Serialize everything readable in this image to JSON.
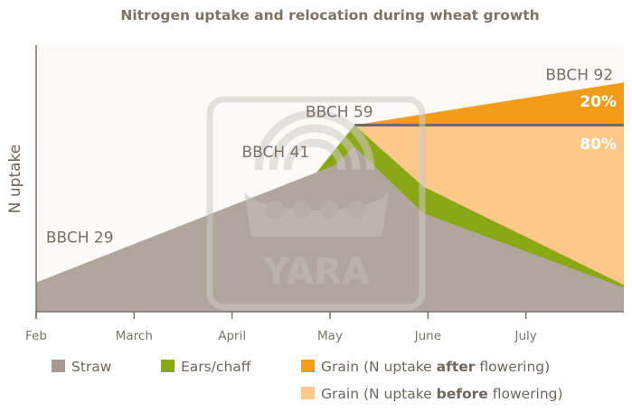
{
  "chart_data": {
    "type": "area",
    "title": "Nitrogen uptake and relocation during wheat growth",
    "ylabel": "N uptake",
    "xlabel": "",
    "months": [
      "Feb",
      "March",
      "April",
      "May",
      "June",
      "July"
    ],
    "xlim": [
      0,
      6
    ],
    "ylim": [
      0,
      100
    ],
    "stacking": "cumulative",
    "series": [
      {
        "name": "Straw",
        "color": "#b0a69c",
        "points": [
          [
            0,
            11
          ],
          [
            3.05,
            55
          ],
          [
            3.25,
            62
          ],
          [
            3.95,
            37
          ],
          [
            6,
            9
          ]
        ]
      },
      {
        "name": "Ears/chaff",
        "color": "#8aa714",
        "points": [
          [
            0,
            11
          ],
          [
            2.75,
            47
          ],
          [
            3.25,
            70
          ],
          [
            3.95,
            47
          ],
          [
            6,
            10
          ]
        ]
      },
      {
        "name": "Grain (N uptake after flowering)",
        "color": "#f39c1b",
        "points": [
          [
            3.25,
            70
          ],
          [
            6,
            86
          ]
        ]
      },
      {
        "name": "Grain (N uptake before flowering)",
        "color": "#fdc98a",
        "points": [
          [
            3.25,
            70
          ],
          [
            6,
            70
          ]
        ]
      }
    ],
    "stages": [
      {
        "label": "BBCH 29",
        "x": 0.1,
        "y": 26
      },
      {
        "label": "BBCH 41",
        "x": 2.1,
        "y": 58
      },
      {
        "label": "BBCH 59",
        "x": 2.75,
        "y": 73
      },
      {
        "label": "BBCH 92",
        "x": 5.2,
        "y": 87
      }
    ],
    "shares": [
      {
        "label": "20%",
        "x": 5.55,
        "y": 77
      },
      {
        "label": "80%",
        "x": 5.55,
        "y": 61
      }
    ],
    "legend": {
      "position": "bottom",
      "items": [
        {
          "parts": [
            "Straw"
          ],
          "bold": [],
          "color": "#a79c92"
        },
        {
          "parts": [
            "Ears/chaff"
          ],
          "bold": [],
          "color": "#8aa714"
        },
        {
          "parts": [
            "Grain (N uptake ",
            "after",
            " flowering)"
          ],
          "bold": [
            1
          ],
          "color": "#f39c1b"
        },
        {
          "parts": [
            "Grain (N uptake ",
            "before",
            " flowering)"
          ],
          "bold": [
            1
          ],
          "color": "#fdc98a"
        }
      ]
    },
    "watermark": "YARA"
  }
}
